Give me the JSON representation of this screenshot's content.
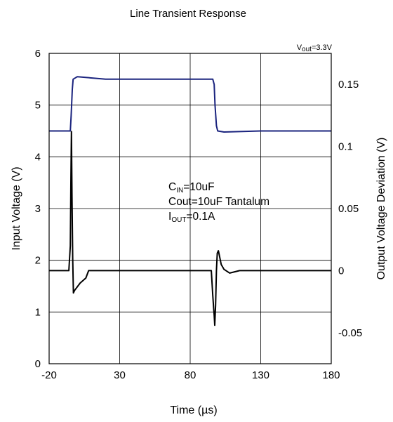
{
  "chart_data": {
    "type": "line",
    "title": "Line Transient Response",
    "top_right_label": "V",
    "top_right_label_sub": "out",
    "top_right_label_value": "=3.3V",
    "xlabel": "Time (µs)",
    "ylabel_left": "Input Voltage (V)",
    "ylabel_right": "Output Voltage Deviation (V)",
    "xlim": [
      -20,
      180
    ],
    "ylim_left": [
      0,
      6
    ],
    "ylim_right": [
      -0.075,
      0.175
    ],
    "x_ticks": [
      -20,
      30,
      80,
      130,
      180
    ],
    "y_ticks_left": [
      0,
      1,
      2,
      3,
      4,
      5,
      6
    ],
    "y_ticks_right": [
      {
        "value": 0.15,
        "label": "0.15"
      },
      {
        "value": 0.1,
        "label": "0.1"
      },
      {
        "value": 0.05,
        "label": "0.05"
      },
      {
        "value": 0,
        "label": "0"
      },
      {
        "value": -0.05,
        "label": "-0.05"
      }
    ],
    "grid": true,
    "annotation": {
      "line1_main": "C",
      "line1_sub": "IN",
      "line1_rest": "=10uF",
      "line2": "Cout=10uF Tantalum",
      "line3_main": "I",
      "line3_sub": "OUT",
      "line3_rest": "=0.1A"
    },
    "series": [
      {
        "axis": "left",
        "color": "#1a237e",
        "x": [
          -20,
          -5,
          -4.4,
          -3.6,
          -3,
          0,
          20,
          50,
          80,
          96,
          97,
          97.6,
          98.6,
          99.5,
          104,
          130,
          160,
          180
        ],
        "y": [
          4.5,
          4.5,
          4.8,
          5.3,
          5.5,
          5.55,
          5.5,
          5.5,
          5.5,
          5.5,
          5.4,
          5.0,
          4.6,
          4.5,
          4.48,
          4.5,
          4.5,
          4.5
        ]
      },
      {
        "axis": "right",
        "color": "#000000",
        "x": [
          -20,
          -6,
          -5,
          -4.6,
          -4.2,
          -3.8,
          -3.3,
          -2.8,
          -2,
          2,
          6,
          8,
          12,
          40,
          70,
          95,
          96,
          96.6,
          97,
          97.4,
          98,
          98.6,
          99.2,
          100,
          102,
          104,
          108,
          115,
          130,
          160,
          180
        ],
        "y": [
          0,
          0,
          0.02,
          0.07,
          0.112,
          0.06,
          0.01,
          -0.018,
          -0.016,
          -0.01,
          -0.006,
          0.0,
          0.0,
          0.0,
          0.0,
          0.0,
          -0.02,
          -0.03,
          -0.036,
          -0.044,
          -0.028,
          0.0,
          0.014,
          0.016,
          0.005,
          0.001,
          -0.002,
          0.0,
          0.0,
          0.0,
          0.0
        ]
      }
    ]
  }
}
